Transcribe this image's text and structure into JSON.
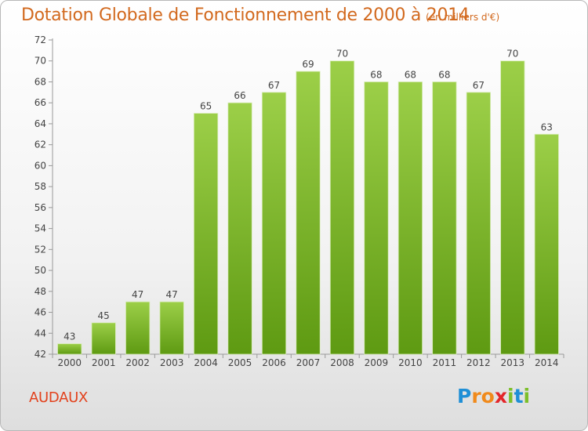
{
  "header": {
    "title": "Dotation Globale de Fonctionnement de 2000 à 2014",
    "unit": "(en milliers d'€)"
  },
  "footer": {
    "commune": "AUDAUX",
    "logo_letters": [
      {
        "ch": "P",
        "color": "#1f8fd6"
      },
      {
        "ch": "r",
        "color": "#f08a1c"
      },
      {
        "ch": "o",
        "color": "#f08a1c"
      },
      {
        "ch": "x",
        "color": "#e3262a"
      },
      {
        "ch": "i",
        "color": "#7cbf2a"
      },
      {
        "ch": "t",
        "color": "#1f8fd6"
      },
      {
        "ch": "i",
        "color": "#7cbf2a"
      }
    ]
  },
  "colors": {
    "bar_top": "#9ccf48",
    "bar_bottom": "#5e9a12",
    "title": "#d2691e"
  },
  "chart_data": {
    "type": "bar",
    "title": "Dotation Globale de Fonctionnement de 2000 à 2014",
    "subtitle": "(en milliers d'€)",
    "xlabel": "",
    "ylabel": "",
    "categories": [
      "2000",
      "2001",
      "2002",
      "2003",
      "2004",
      "2005",
      "2006",
      "2007",
      "2008",
      "2009",
      "2010",
      "2011",
      "2012",
      "2013",
      "2014"
    ],
    "values": [
      43,
      45,
      47,
      47,
      65,
      66,
      67,
      69,
      70,
      68,
      68,
      68,
      67,
      70,
      63
    ],
    "ylim": [
      42,
      72
    ],
    "yticks": [
      42,
      44,
      46,
      48,
      50,
      52,
      54,
      56,
      58,
      60,
      62,
      64,
      66,
      68,
      70,
      72
    ],
    "grid": false,
    "data_labels": true
  }
}
